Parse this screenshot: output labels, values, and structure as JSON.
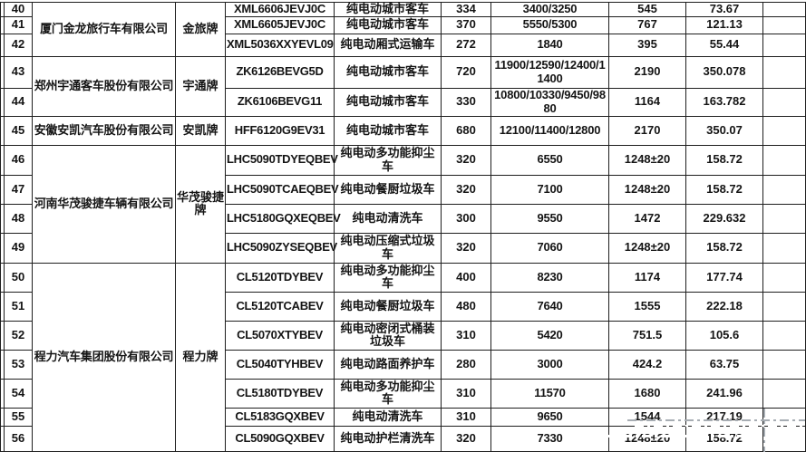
{
  "page": {
    "background": "#ffffff",
    "border_color": "#1e1e1e"
  },
  "watermark": {
    "description": "dash-dot crop-mark lines overlaying bottom-right cells",
    "gray_color": "#a7adb3",
    "white_color": "#ffffff"
  },
  "table": {
    "groups": [
      {
        "company": "厦门金龙旅行车有限公司",
        "brand": "金旅牌",
        "start_index": 0,
        "row_span": 3
      },
      {
        "company": "郑州宇通客车股份有限公司",
        "brand": "宇通牌",
        "start_index": 3,
        "row_span": 2
      },
      {
        "company": "安徽安凯汽车股份有限公司",
        "brand": "安凯牌",
        "start_index": 5,
        "row_span": 1
      },
      {
        "company": "河南华茂骏捷车辆有限公司",
        "brand": "华茂骏捷牌",
        "start_index": 6,
        "row_span": 4
      },
      {
        "company": "程力汽车集团股份有限公司",
        "brand": "程力牌",
        "start_index": 10,
        "row_span": 7
      }
    ],
    "rows": [
      {
        "no": "40",
        "model": "XML6606JEVJ0C",
        "vehicle_type": "纯电动城市客车",
        "v1": "334",
        "v2": "3400/3250",
        "v3": "545",
        "v4": "73.67",
        "v5": ""
      },
      {
        "no": "41",
        "model": "XML6605JEVJ0C",
        "vehicle_type": "纯电动城市客车",
        "v1": "370",
        "v2": "5550/5300",
        "v3": "767",
        "v4": "121.13",
        "v5": ""
      },
      {
        "no": "42",
        "model": "XML5036XXYEVL09",
        "vehicle_type": "纯电动厢式运输车",
        "v1": "272",
        "v2": "1840",
        "v3": "395",
        "v4": "55.44",
        "v5": ""
      },
      {
        "no": "43",
        "model": "ZK6126BEVG5D",
        "vehicle_type": "纯电动城市客车",
        "v1": "720",
        "v2": "11900/12590/12400/11400",
        "v3": "2190",
        "v4": "350.078",
        "v5": ""
      },
      {
        "no": "44",
        "model": "ZK6106BEVG11",
        "vehicle_type": "纯电动城市客车",
        "v1": "330",
        "v2": "10800/10330/9450/9880",
        "v3": "1164",
        "v4": "163.782",
        "v5": ""
      },
      {
        "no": "45",
        "model": "HFF6120G9EV31",
        "vehicle_type": "纯电动城市客车",
        "v1": "680",
        "v2": "12100/11400/12800",
        "v3": "2170",
        "v4": "350.07",
        "v5": ""
      },
      {
        "no": "46",
        "model": "LHC5090TDYEQBEV",
        "vehicle_type": "纯电动多功能抑尘车",
        "v1": "320",
        "v2": "6550",
        "v3": "1248±20",
        "v4": "158.72",
        "v5": ""
      },
      {
        "no": "47",
        "model": "LHC5090TCAEQBEV",
        "vehicle_type": "纯电动餐厨垃圾车",
        "v1": "320",
        "v2": "7100",
        "v3": "1248±20",
        "v4": "158.72",
        "v5": ""
      },
      {
        "no": "48",
        "model": "LHC5180GQXEQBEV",
        "vehicle_type": "纯电动清洗车",
        "v1": "300",
        "v2": "9550",
        "v3": "1472",
        "v4": "229.632",
        "v5": ""
      },
      {
        "no": "49",
        "model": "LHC5090ZYSEQBEV",
        "vehicle_type": "纯电动压缩式垃圾车",
        "v1": "320",
        "v2": "7060",
        "v3": "1248±20",
        "v4": "158.72",
        "v5": ""
      },
      {
        "no": "50",
        "model": "CL5120TDYBEV",
        "vehicle_type": "纯电动多功能抑尘车",
        "v1": "400",
        "v2": "8230",
        "v3": "1174",
        "v4": "177.74",
        "v5": ""
      },
      {
        "no": "51",
        "model": "CL5120TCABEV",
        "vehicle_type": "纯电动餐厨垃圾车",
        "v1": "480",
        "v2": "7640",
        "v3": "1555",
        "v4": "222.18",
        "v5": ""
      },
      {
        "no": "52",
        "model": "CL5070XTYBEV",
        "vehicle_type": "纯电动密闭式桶装垃圾车",
        "v1": "310",
        "v2": "5420",
        "v3": "751.5",
        "v4": "105.6",
        "v5": ""
      },
      {
        "no": "53",
        "model": "CL5040TYHBEV",
        "vehicle_type": "纯电动路面养护车",
        "v1": "280",
        "v2": "3000",
        "v3": "424.2",
        "v4": "63.75",
        "v5": ""
      },
      {
        "no": "54",
        "model": "CL5180TDYBEV",
        "vehicle_type": "纯电动多功能抑尘车",
        "v1": "310",
        "v2": "11570",
        "v3": "1680",
        "v4": "241.96",
        "v5": ""
      },
      {
        "no": "55",
        "model": "CL5183GQXBEV",
        "vehicle_type": "纯电动清洗车",
        "v1": "310",
        "v2": "9650",
        "v3": "1544",
        "v4": "217.19",
        "v5": ""
      },
      {
        "no": "56",
        "model": "CL5090GQXBEV",
        "vehicle_type": "纯电动护栏清洗车",
        "v1": "320",
        "v2": "7330",
        "v3": "1248±20",
        "v4": "158.72",
        "v5": ""
      }
    ]
  }
}
